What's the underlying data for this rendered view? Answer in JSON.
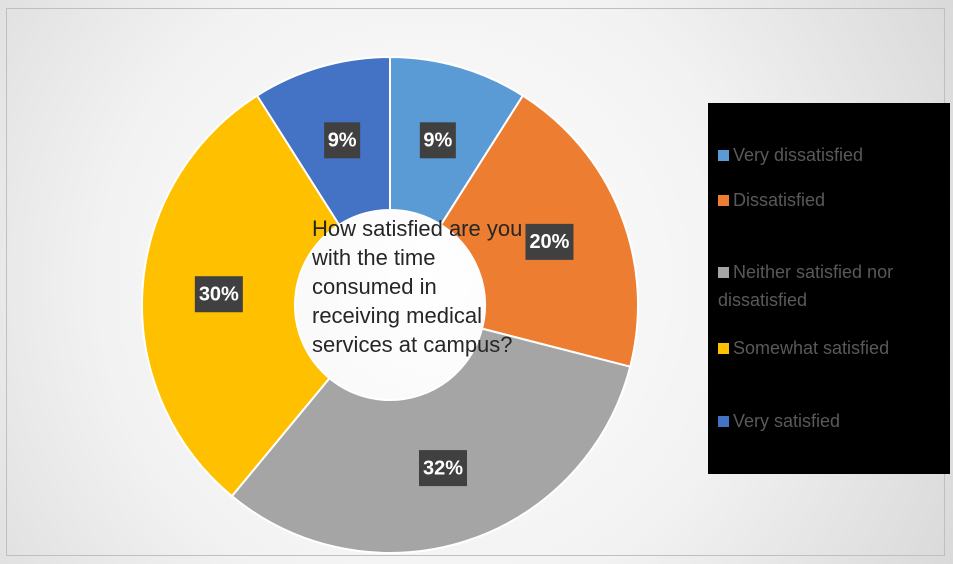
{
  "chart_data": {
    "type": "donut",
    "title": "How satisfied are you with the time consumed in receiving medical services at campus?",
    "categories": [
      "Very dissatisfied",
      "Dissatisfied",
      "Neither satisfied nor dissatisfied",
      "Somewhat satisfied",
      "Very satisfied"
    ],
    "values": [
      9,
      20,
      32,
      30,
      9
    ],
    "value_labels": [
      "9%",
      "20%",
      "32%",
      "30%",
      "9%"
    ],
    "colors": [
      "#5b9bd5",
      "#ed7d31",
      "#a5a5a5",
      "#ffc000",
      "#4472c4"
    ],
    "legend": "right"
  }
}
